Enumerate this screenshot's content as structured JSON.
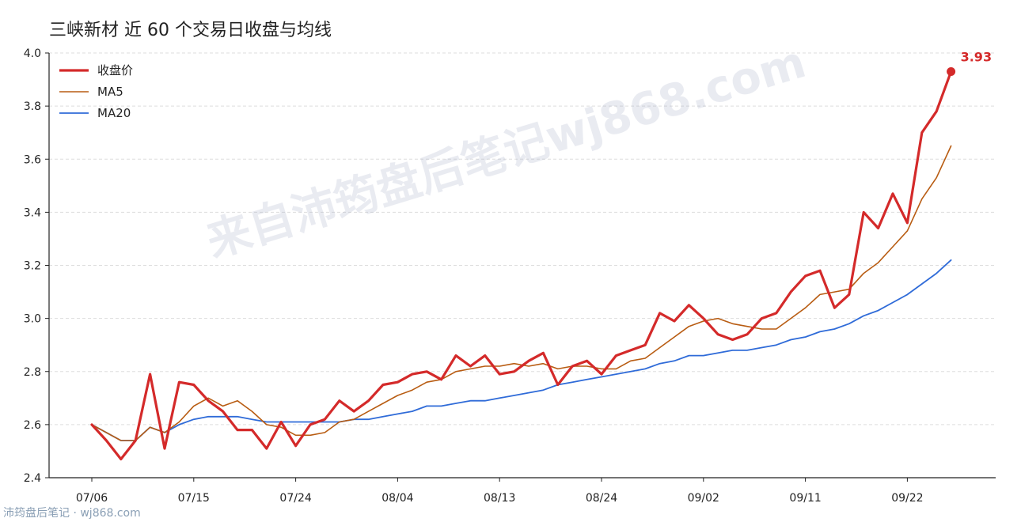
{
  "title": "三峡新材 近 60 个交易日收盘与均线",
  "footer": "沛筠盘后笔记 · wj868.com",
  "watermark": "来自沛筠盘后笔记wj868.com",
  "colors": {
    "close": "#d42a2a",
    "ma5": "#b85c12",
    "ma20": "#2f6bd8",
    "grid": "#dddddd",
    "axis": "#222222"
  },
  "chart_data": {
    "type": "line",
    "title": "三峡新材 近 60 个交易日收盘与均线",
    "xlabel": "",
    "ylabel": "",
    "ylim": [
      2.4,
      4.0
    ],
    "yticks": [
      "2.4",
      "2.6",
      "2.8",
      "3.0",
      "3.2",
      "3.4",
      "3.6",
      "3.8",
      "4.0"
    ],
    "xticks": [
      {
        "index": 0,
        "label": "07/06"
      },
      {
        "index": 7,
        "label": "07/15"
      },
      {
        "index": 14,
        "label": "07/24"
      },
      {
        "index": 21,
        "label": "08/04"
      },
      {
        "index": 28,
        "label": "08/13"
      },
      {
        "index": 35,
        "label": "08/24"
      },
      {
        "index": 42,
        "label": "09/02"
      },
      {
        "index": 49,
        "label": "09/11"
      },
      {
        "index": 56,
        "label": "09/22"
      }
    ],
    "grid": "horizontal dashed",
    "legend_position": "top-left",
    "series": [
      {
        "name": "收盘价",
        "key": "close",
        "values": [
          2.6,
          2.54,
          2.47,
          2.54,
          2.79,
          2.51,
          2.76,
          2.75,
          2.69,
          2.65,
          2.58,
          2.58,
          2.51,
          2.61,
          2.52,
          2.6,
          2.62,
          2.69,
          2.65,
          2.69,
          2.75,
          2.76,
          2.79,
          2.8,
          2.77,
          2.86,
          2.82,
          2.86,
          2.79,
          2.8,
          2.84,
          2.87,
          2.75,
          2.82,
          2.84,
          2.79,
          2.86,
          2.88,
          2.9,
          3.02,
          2.99,
          3.05,
          3.0,
          2.94,
          2.92,
          2.94,
          3.0,
          3.02,
          3.1,
          3.16,
          3.18,
          3.04,
          3.09,
          3.4,
          3.34,
          3.47,
          3.36,
          3.7,
          3.78,
          3.93
        ]
      },
      {
        "name": "MA5",
        "key": "ma5",
        "values": [
          2.6,
          2.57,
          2.54,
          2.54,
          2.59,
          2.57,
          2.61,
          2.67,
          2.7,
          2.67,
          2.69,
          2.65,
          2.6,
          2.59,
          2.56,
          2.56,
          2.57,
          2.61,
          2.62,
          2.65,
          2.68,
          2.71,
          2.73,
          2.76,
          2.77,
          2.8,
          2.81,
          2.82,
          2.82,
          2.83,
          2.82,
          2.83,
          2.81,
          2.82,
          2.82,
          2.81,
          2.81,
          2.84,
          2.85,
          2.89,
          2.93,
          2.97,
          2.99,
          3.0,
          2.98,
          2.97,
          2.96,
          2.96,
          3.0,
          3.04,
          3.09,
          3.1,
          3.11,
          3.17,
          3.21,
          3.27,
          3.33,
          3.45,
          3.53,
          3.65
        ]
      },
      {
        "name": "MA20",
        "key": "ma20",
        "values": [
          2.6,
          2.57,
          2.54,
          2.54,
          2.59,
          2.57,
          2.6,
          2.62,
          2.63,
          2.63,
          2.63,
          2.62,
          2.61,
          2.61,
          2.61,
          2.61,
          2.61,
          2.61,
          2.62,
          2.62,
          2.63,
          2.64,
          2.65,
          2.67,
          2.67,
          2.68,
          2.69,
          2.69,
          2.7,
          2.71,
          2.72,
          2.73,
          2.75,
          2.76,
          2.77,
          2.78,
          2.79,
          2.8,
          2.81,
          2.83,
          2.84,
          2.86,
          2.86,
          2.87,
          2.88,
          2.88,
          2.89,
          2.9,
          2.92,
          2.93,
          2.95,
          2.96,
          2.98,
          3.01,
          3.03,
          3.06,
          3.09,
          3.13,
          3.17,
          3.22
        ]
      }
    ],
    "last_value_label": "3.93"
  }
}
